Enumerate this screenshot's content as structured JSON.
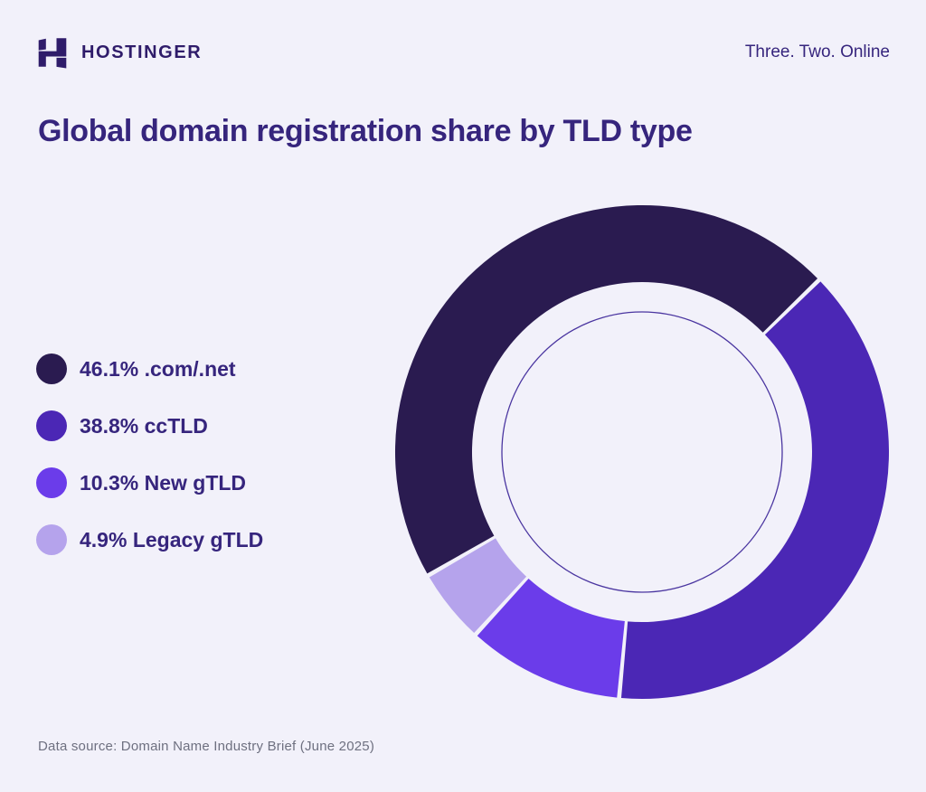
{
  "header": {
    "brand": "HOSTINGER",
    "tagline": "Three. Two. Online"
  },
  "title": "Global domain registration share by TLD type",
  "legend": {
    "items": [
      {
        "text": "46.1% .com/.net",
        "color": "#2A1B50"
      },
      {
        "text": "38.8% ccTLD",
        "color": "#4B27B5"
      },
      {
        "text": "10.3% New gTLD",
        "color": "#6B3CEA"
      },
      {
        "text": "4.9% Legacy gTLD",
        "color": "#B5A3EC"
      }
    ]
  },
  "footer": {
    "source": "Data source: Domain Name Industry Brief (June 2025)"
  },
  "colors": {
    "background": "#F2F1FA",
    "brand_dark": "#2F1C6A",
    "text_purple": "#36257D",
    "footer_gray": "#6E7080",
    "inner_ring_line": "#4A35A0"
  },
  "chart_data": {
    "type": "pie",
    "donut": true,
    "title": "Global domain registration share by TLD type",
    "unit": "%",
    "slices": [
      {
        "label": ".com/.net",
        "value": 46.1,
        "color": "#2A1B50"
      },
      {
        "label": "ccTLD",
        "value": 38.8,
        "color": "#4B27B5"
      },
      {
        "label": "New gTLD",
        "value": 10.3,
        "color": "#6B3CEA"
      },
      {
        "label": "Legacy gTLD",
        "value": 4.9,
        "color": "#B5A3EC"
      }
    ],
    "start_angle_deg": 240,
    "direction": "clockwise",
    "legend_position": "left",
    "source": "Domain Name Industry Brief (June 2025)"
  }
}
